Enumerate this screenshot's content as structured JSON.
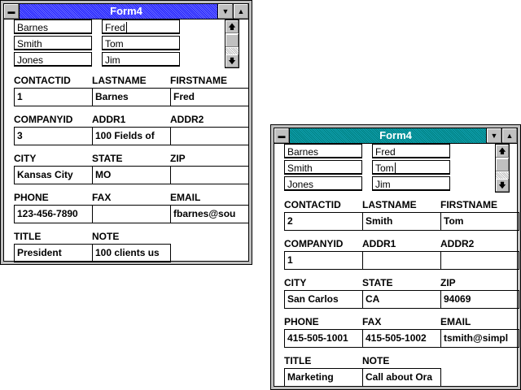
{
  "windows": [
    {
      "title": "Form4",
      "list_last": [
        "Barnes",
        "Smith",
        "Jones"
      ],
      "list_first": [
        "Fred",
        "Tom",
        "Jim"
      ],
      "caret_row": 0,
      "fields": [
        {
          "label": "CONTACTID",
          "value": "1"
        },
        {
          "label": "LASTNAME",
          "value": "Barnes"
        },
        {
          "label": "FIRSTNAME",
          "value": "Fred"
        },
        {
          "label": "COMPANYID",
          "value": "3"
        },
        {
          "label": "ADDR1",
          "value": "100 Fields of"
        },
        {
          "label": "ADDR2",
          "value": ""
        },
        {
          "label": "CITY",
          "value": "Kansas City"
        },
        {
          "label": "STATE",
          "value": "MO"
        },
        {
          "label": "ZIP",
          "value": ""
        },
        {
          "label": "PHONE",
          "value": "123-456-7890"
        },
        {
          "label": "FAX",
          "value": ""
        },
        {
          "label": "EMAIL",
          "value": "fbarnes@sou"
        },
        {
          "label": "TITLE",
          "value": "President"
        },
        {
          "label": "NOTE",
          "value": "100 clients us"
        }
      ]
    },
    {
      "title": "Form4",
      "list_last": [
        "Barnes",
        "Smith",
        "Jones"
      ],
      "list_first": [
        "Fred",
        "Tom",
        "Jim"
      ],
      "caret_row": 1,
      "fields": [
        {
          "label": "CONTACTID",
          "value": "2"
        },
        {
          "label": "LASTNAME",
          "value": "Smith"
        },
        {
          "label": "FIRSTNAME",
          "value": "Tom"
        },
        {
          "label": "COMPANYID",
          "value": "1"
        },
        {
          "label": "ADDR1",
          "value": ""
        },
        {
          "label": "ADDR2",
          "value": ""
        },
        {
          "label": "CITY",
          "value": "San Carlos"
        },
        {
          "label": "STATE",
          "value": "CA"
        },
        {
          "label": "ZIP",
          "value": "94069"
        },
        {
          "label": "PHONE",
          "value": "415-505-1001"
        },
        {
          "label": "FAX",
          "value": "415-505-1002"
        },
        {
          "label": "EMAIL",
          "value": "tsmith@simpl"
        },
        {
          "label": "TITLE",
          "value": "Marketing"
        },
        {
          "label": "NOTE",
          "value": "Call about Ora"
        }
      ]
    }
  ]
}
